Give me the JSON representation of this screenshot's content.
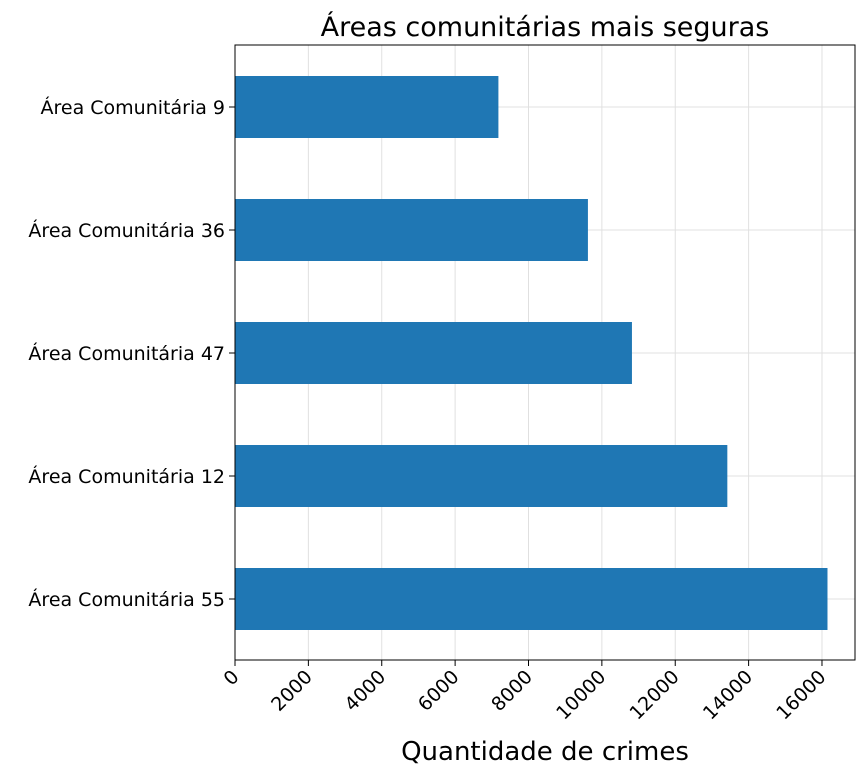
{
  "chart_data": {
    "type": "bar",
    "orientation": "horizontal",
    "title": "Áreas comunitárias mais seguras",
    "xlabel": "Quantidade de crimes",
    "ylabel": "",
    "categories": [
      "Área Comunitária 55",
      "Área Comunitária 12",
      "Área Comunitária 47",
      "Área Comunitária 36",
      "Área Comunitária 9"
    ],
    "values": [
      16150,
      13420,
      10820,
      9620,
      7180
    ],
    "xlim": [
      0,
      16900
    ],
    "xticks": [
      0,
      2000,
      4000,
      6000,
      8000,
      10000,
      12000,
      14000,
      16000
    ],
    "grid": true,
    "bar_color": "#1f77b4"
  }
}
